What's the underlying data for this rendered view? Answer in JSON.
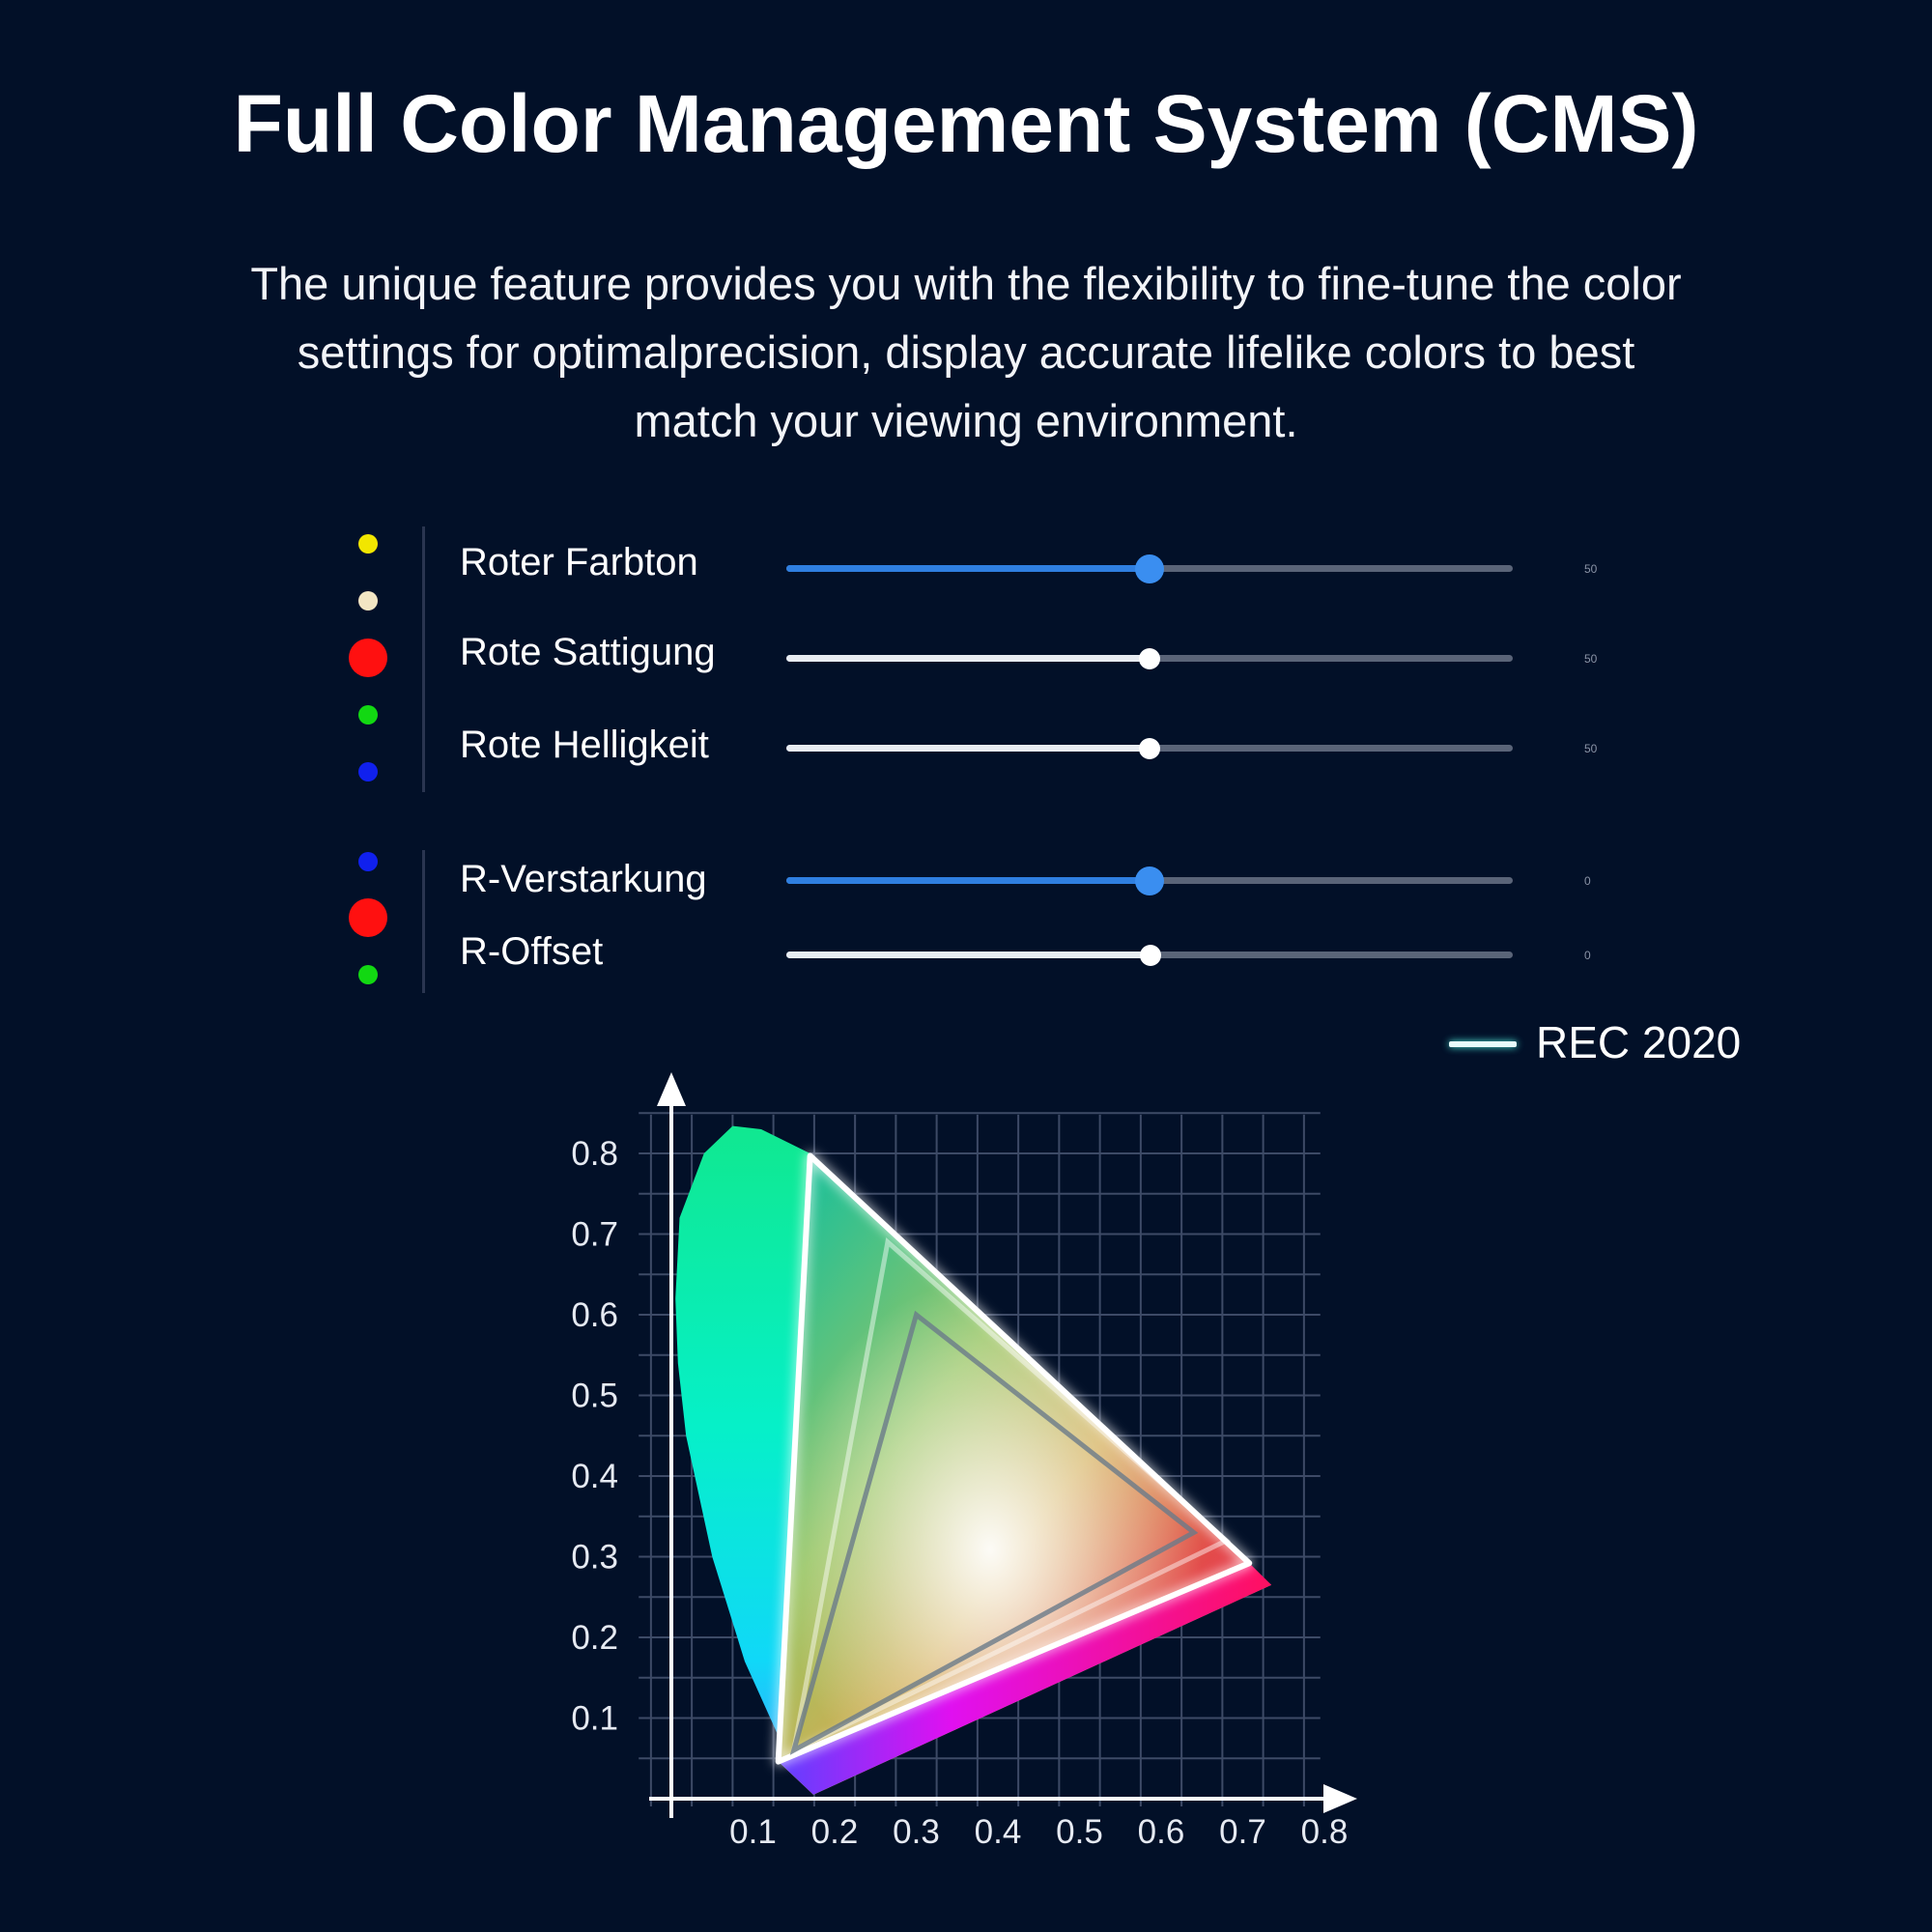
{
  "header": {
    "title": "Full Color Management System (CMS)",
    "description_lines": [
      "The unique feature provides you with the flexibility to fine-tune the color",
      "settings for optimalprecision, display accurate lifelike colors to best",
      "match your viewing environment."
    ]
  },
  "colors": {
    "background": "#021028",
    "slider_blue": "#2f7fe0",
    "dot_yellow": "#f2e600",
    "dot_cream": "#f3e6c4",
    "dot_red": "#ff1010",
    "dot_green": "#12d812",
    "dot_blue": "#1020ee"
  },
  "hsb_group": {
    "sliders": [
      {
        "label": "Roter Farbton",
        "level": 0.5,
        "active": true,
        "value_text": "50"
      },
      {
        "label": "Rote Sattigung",
        "level": 0.5,
        "active": false,
        "value_text": "50"
      },
      {
        "label": "Rote Helligkeit",
        "level": 0.5,
        "active": false,
        "value_text": "50"
      }
    ]
  },
  "gain_group": {
    "sliders": [
      {
        "label": "R-Verstarkung",
        "level": 0.5,
        "active": true,
        "value_text": "0"
      },
      {
        "label": "R-Offset",
        "level": 0.5,
        "active": false,
        "value_text": "0"
      }
    ]
  },
  "legend": {
    "label": "REC 2020"
  },
  "chart_data": {
    "type": "chromaticity-diagram",
    "title": "",
    "xlabel": "",
    "ylabel": "",
    "x_ticks": [
      "0.1",
      "0.2",
      "0.3",
      "0.4",
      "0.5",
      "0.6",
      "0.7",
      "0.8"
    ],
    "y_ticks": [
      "0.1",
      "0.2",
      "0.3",
      "0.4",
      "0.5",
      "0.6",
      "0.7",
      "0.8"
    ],
    "xlim": [
      0,
      0.85
    ],
    "ylim": [
      0,
      0.9
    ],
    "grid": true,
    "legend_position": "top-right",
    "series": [
      {
        "name": "REC 2020",
        "points": [
          [
            0.708,
            0.292
          ],
          [
            0.17,
            0.797
          ],
          [
            0.131,
            0.046
          ]
        ]
      }
    ],
    "spectral_locus": [
      [
        0.174,
        0.005
      ],
      [
        0.16,
        0.02
      ],
      [
        0.13,
        0.08
      ],
      [
        0.09,
        0.17
      ],
      [
        0.05,
        0.3
      ],
      [
        0.018,
        0.45
      ],
      [
        0.008,
        0.54
      ],
      [
        0.005,
        0.62
      ],
      [
        0.01,
        0.72
      ],
      [
        0.04,
        0.8
      ],
      [
        0.075,
        0.834
      ],
      [
        0.11,
        0.83
      ],
      [
        0.17,
        0.8
      ],
      [
        0.735,
        0.265
      ]
    ]
  }
}
